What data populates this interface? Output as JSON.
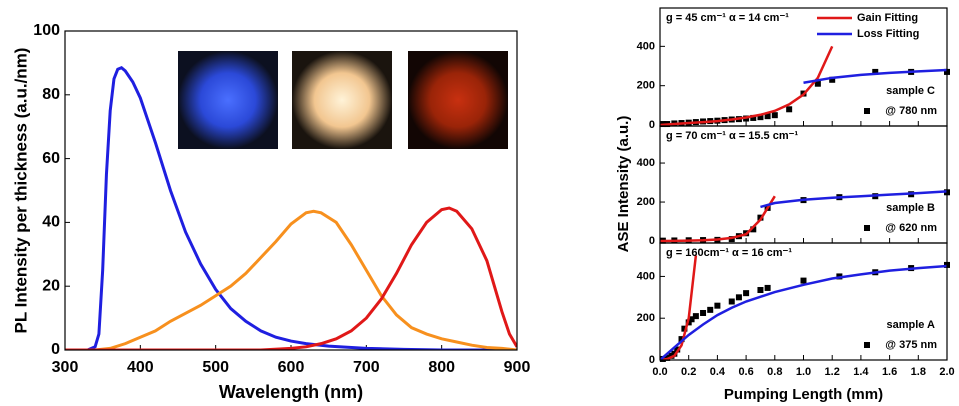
{
  "chart_data": [
    {
      "type": "line",
      "xlabel": "Wavelength (nm)",
      "ylabel": "PL Intensity  per thickness (a.u./nm)",
      "xlim": [
        300,
        900
      ],
      "xticks": [
        300,
        400,
        500,
        600,
        700,
        800,
        900
      ],
      "ylim": [
        0,
        100
      ],
      "yticks": [
        0,
        20,
        40,
        60,
        80,
        100
      ],
      "series": [
        {
          "color": "#1f1fe0",
          "x": [
            300,
            330,
            340,
            345,
            350,
            355,
            360,
            365,
            370,
            375,
            380,
            390,
            400,
            420,
            440,
            460,
            480,
            500,
            520,
            540,
            560,
            580,
            600,
            620,
            650,
            700,
            750,
            800,
            900
          ],
          "values": [
            0,
            0,
            1,
            5,
            25,
            55,
            75,
            85,
            88,
            88.5,
            87.5,
            84,
            79,
            65,
            50,
            37,
            27,
            19,
            13,
            9,
            6,
            4,
            2.8,
            2,
            1.2,
            0.5,
            0.2,
            0,
            0
          ]
        },
        {
          "color": "#f7901e",
          "x": [
            300,
            340,
            360,
            380,
            400,
            420,
            440,
            460,
            480,
            500,
            520,
            540,
            560,
            580,
            600,
            620,
            630,
            640,
            660,
            680,
            700,
            720,
            740,
            760,
            780,
            800,
            820,
            840,
            860,
            880,
            900
          ],
          "values": [
            0,
            0,
            0.5,
            2,
            4,
            6,
            9,
            11.5,
            14,
            17,
            20,
            24,
            29,
            34,
            39.5,
            43,
            43.5,
            43,
            40,
            33,
            25,
            17,
            11,
            7,
            5,
            3.5,
            2.5,
            1.5,
            0.8,
            0.5,
            0
          ]
        },
        {
          "color": "#e01818",
          "x": [
            300,
            560,
            600,
            620,
            640,
            660,
            680,
            700,
            720,
            740,
            760,
            780,
            800,
            810,
            820,
            840,
            860,
            870,
            880,
            890,
            900
          ],
          "values": [
            0,
            0,
            0.5,
            1,
            2,
            3.5,
            6,
            10,
            16,
            24,
            33,
            40,
            44,
            44.5,
            43.5,
            38,
            28,
            20,
            12,
            5,
            1
          ]
        }
      ]
    },
    {
      "type": "scatter",
      "annotation": "g = 45 cm⁻¹   α = 14 cm⁻¹",
      "legend_title": "sample C",
      "xlim": [
        0,
        2
      ],
      "ylim": [
        -5,
        595
      ],
      "yticks": [
        0,
        200,
        400
      ],
      "series": [
        {
          "name": "@ 780 nm",
          "mode": "markers",
          "color": "#000000",
          "x": [
            0.02,
            0.05,
            0.1,
            0.15,
            0.2,
            0.25,
            0.3,
            0.35,
            0.4,
            0.45,
            0.5,
            0.55,
            0.6,
            0.65,
            0.7,
            0.75,
            0.8,
            0.9,
            1.0,
            1.1,
            1.2,
            1.5,
            1.75,
            2.0
          ],
          "values": [
            5,
            5,
            8,
            10,
            12,
            15,
            18,
            20,
            22,
            25,
            28,
            30,
            33,
            36,
            40,
            45,
            50,
            80,
            160,
            210,
            230,
            270,
            270,
            270
          ]
        },
        {
          "name": "Gain Fitting",
          "mode": "line",
          "color": "#e01818",
          "x": [
            0,
            0.1,
            0.2,
            0.3,
            0.4,
            0.5,
            0.6,
            0.7,
            0.8,
            0.9,
            1.0,
            1.1,
            1.2
          ],
          "values": [
            0,
            5,
            10,
            15,
            20,
            28,
            38,
            52,
            72,
            105,
            155,
            240,
            400
          ]
        },
        {
          "name": "Loss Fitting",
          "mode": "line",
          "color": "#1f1fe0",
          "x": [
            1.0,
            1.2,
            1.4,
            1.6,
            1.8,
            2.0
          ],
          "values": [
            215,
            240,
            255,
            265,
            273,
            280
          ]
        }
      ]
    },
    {
      "type": "scatter",
      "annotation": "g = 70 cm⁻¹   α = 15.5 cm⁻¹",
      "legend_title": "sample B",
      "ylabel": "ASE Intensity (a.u.)",
      "xlim": [
        0,
        2
      ],
      "ylim": [
        -10,
        590
      ],
      "yticks": [
        0,
        200,
        400
      ],
      "series": [
        {
          "name": "@ 620 nm",
          "mode": "markers",
          "color": "#000000",
          "x": [
            0.02,
            0.1,
            0.2,
            0.3,
            0.4,
            0.5,
            0.55,
            0.6,
            0.65,
            0.7,
            0.75,
            1.0,
            1.25,
            1.5,
            1.75,
            2.0
          ],
          "values": [
            2,
            3,
            4,
            5,
            6,
            10,
            25,
            40,
            60,
            120,
            170,
            210,
            225,
            230,
            240,
            250
          ]
        },
        {
          "mode": "line",
          "color": "#e01818",
          "x": [
            0,
            0.1,
            0.2,
            0.3,
            0.4,
            0.5,
            0.6,
            0.7,
            0.8
          ],
          "values": [
            0,
            1,
            2,
            4,
            8,
            16,
            35,
            110,
            230
          ]
        },
        {
          "mode": "line",
          "color": "#1f1fe0",
          "x": [
            0.7,
            0.8,
            1.0,
            1.2,
            1.4,
            1.6,
            1.8,
            2.0
          ],
          "values": [
            175,
            195,
            212,
            222,
            230,
            238,
            246,
            255
          ]
        }
      ]
    },
    {
      "type": "scatter",
      "annotation": "g = 160cm⁻¹   α = 16 cm⁻¹",
      "legend_title": "sample A",
      "xlabel": "Pumping Length (mm)",
      "xlim": [
        0,
        2
      ],
      "ylim": [
        0,
        560
      ],
      "yticks": [
        0,
        200,
        400
      ],
      "xticks": [
        {
          "value": 0,
          "label": "0.0"
        },
        {
          "value": 0.2,
          "label": "0.2"
        },
        {
          "value": 0.4,
          "label": "0.4"
        },
        {
          "value": 0.6,
          "label": "0.6"
        },
        {
          "value": 0.8,
          "label": "0.8"
        },
        {
          "value": 1,
          "label": "1.0"
        },
        {
          "value": 1.2,
          "label": "1.2"
        },
        {
          "value": 1.4,
          "label": "1.4"
        },
        {
          "value": 1.6,
          "label": "1.6"
        },
        {
          "value": 1.8,
          "label": "1.8"
        },
        {
          "value": 2,
          "label": "2.0"
        }
      ],
      "series": [
        {
          "name": "@ 375 nm",
          "mode": "markers",
          "color": "#000000",
          "x": [
            0.02,
            0.05,
            0.08,
            0.1,
            0.12,
            0.15,
            0.17,
            0.2,
            0.22,
            0.25,
            0.3,
            0.35,
            0.4,
            0.5,
            0.55,
            0.6,
            0.7,
            0.75,
            1.0,
            1.25,
            1.5,
            1.75,
            2.0
          ],
          "values": [
            5,
            10,
            20,
            30,
            50,
            100,
            150,
            180,
            195,
            210,
            225,
            240,
            260,
            280,
            300,
            320,
            335,
            345,
            380,
            400,
            420,
            440,
            455
          ]
        },
        {
          "mode": "line",
          "color": "#e01818",
          "x": [
            0,
            0.05,
            0.1,
            0.15,
            0.2,
            0.25
          ],
          "values": [
            0,
            5,
            20,
            70,
            200,
            500
          ]
        },
        {
          "mode": "line",
          "color": "#1f1fe0",
          "x": [
            0,
            0.1,
            0.2,
            0.3,
            0.4,
            0.5,
            0.6,
            0.8,
            1.0,
            1.2,
            1.4,
            1.6,
            1.8,
            2.0
          ],
          "values": [
            0,
            60,
            120,
            170,
            215,
            250,
            280,
            325,
            360,
            390,
            410,
            428,
            440,
            450
          ]
        }
      ]
    }
  ]
}
